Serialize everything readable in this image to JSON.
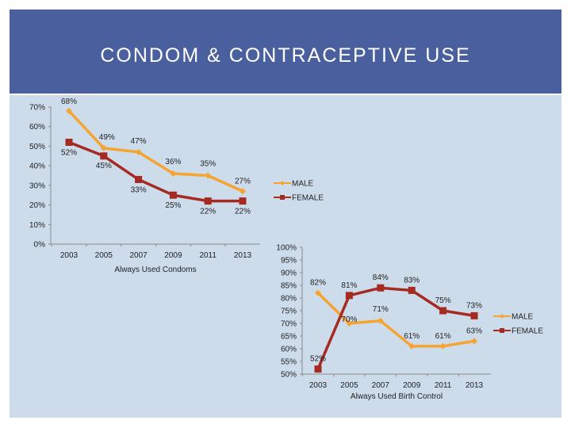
{
  "header": {
    "title": "CONDOM & CONTRACEPTIVE USE"
  },
  "colors": {
    "header": "#4a5f9e",
    "background": "#cddceb",
    "male": "#f5a432",
    "female": "#a52a22"
  },
  "chart_data": [
    {
      "type": "line",
      "xlabel": "Always Used Condoms",
      "categories": [
        "2003",
        "2005",
        "2007",
        "2009",
        "2011",
        "2013"
      ],
      "yticks": [
        "0%",
        "10%",
        "20%",
        "30%",
        "40%",
        "50%",
        "60%",
        "70%"
      ],
      "ylim": [
        0,
        70
      ],
      "legend": "right",
      "series": [
        {
          "name": "MALE",
          "values": [
            68,
            49,
            47,
            36,
            35,
            27
          ],
          "labels": [
            "68%",
            "49%",
            "47%",
            "36%",
            "35%",
            "27%"
          ]
        },
        {
          "name": "FEMALE",
          "values": [
            52,
            45,
            33,
            25,
            22,
            22
          ],
          "labels": [
            "52%",
            "45%",
            "33%",
            "25%",
            "22%",
            "22%"
          ]
        }
      ]
    },
    {
      "type": "line",
      "xlabel": "Always Used Birth Control",
      "categories": [
        "2003",
        "2005",
        "2007",
        "2009",
        "2011",
        "2013"
      ],
      "yticks": [
        "50%",
        "55%",
        "60%",
        "65%",
        "70%",
        "75%",
        "80%",
        "85%",
        "90%",
        "95%",
        "100%"
      ],
      "ylim": [
        50,
        100
      ],
      "legend": "right",
      "series": [
        {
          "name": "MALE",
          "values": [
            82,
            70,
            71,
            61,
            61,
            63
          ],
          "labels": [
            "82%",
            "70%",
            "71%",
            "61%",
            "61%",
            "63%"
          ]
        },
        {
          "name": "FEMALE",
          "values": [
            52,
            81,
            84,
            83,
            75,
            73
          ],
          "labels": [
            "52%",
            "81%",
            "84%",
            "83%",
            "75%",
            "73%"
          ]
        }
      ]
    }
  ]
}
